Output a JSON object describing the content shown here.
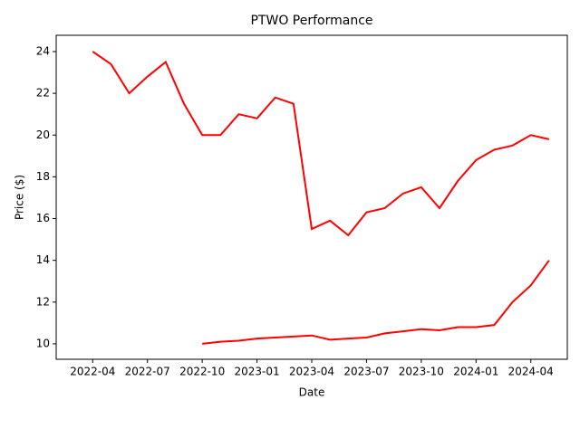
{
  "chart_data": {
    "type": "line",
    "title": "PTWO Performance",
    "x_label": "Date",
    "y_label": "Price ($)",
    "x": [
      "2022-04",
      "2022-05",
      "2022-06",
      "2022-07",
      "2022-08",
      "2022-09",
      "2022-10",
      "2022-11",
      "2022-12",
      "2023-01",
      "2023-02",
      "2023-03",
      "2023-04",
      "2023-05",
      "2023-06",
      "2023-07",
      "2023-08",
      "2023-09",
      "2023-10",
      "2023-11",
      "2023-12",
      "2024-01",
      "2024-02",
      "2024-03",
      "2024-04",
      "2024-05"
    ],
    "series": [
      {
        "color": "#ff0000",
        "values": [
          24.0,
          23.4,
          22.0,
          22.8,
          23.5,
          21.5,
          20.0,
          20.0,
          21.0,
          20.8,
          21.8,
          21.5,
          15.5,
          15.9,
          15.2,
          16.3,
          16.5,
          17.2,
          17.5,
          16.5,
          17.8,
          18.8,
          19.3,
          19.5,
          20.0,
          19.8
        ]
      },
      {
        "color": "#ff0000",
        "values": [
          null,
          null,
          null,
          null,
          null,
          null,
          10.0,
          10.1,
          10.15,
          10.25,
          10.3,
          10.35,
          10.4,
          10.2,
          10.25,
          10.3,
          10.5,
          10.6,
          10.7,
          10.65,
          10.8,
          10.8,
          10.9,
          12.0,
          12.8,
          14.0
        ]
      }
    ],
    "xlim": [
      "2022-02",
      "2024-06"
    ],
    "xticks": [
      "2022-04",
      "2022-07",
      "2022-10",
      "2023-01",
      "2023-04",
      "2023-07",
      "2023-10",
      "2024-01",
      "2024-04"
    ],
    "ylim": [
      9.26,
      24.78
    ],
    "yticks": [
      10,
      12,
      14,
      16,
      18,
      20,
      22,
      24
    ]
  }
}
